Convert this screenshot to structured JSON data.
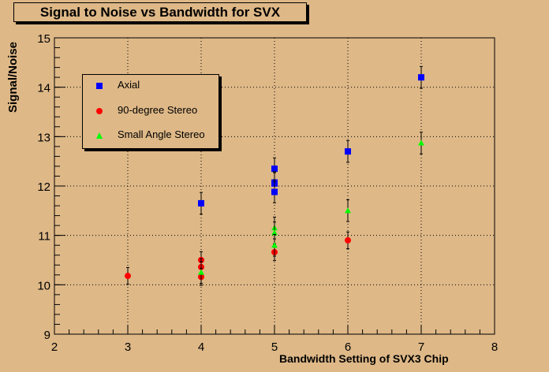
{
  "chart_data": {
    "type": "scatter",
    "title": "Signal to Noise vs Bandwidth for SVX",
    "xlabel": "Bandwidth Setting of SVX3 Chip",
    "ylabel": "Signal/Noise",
    "xlim": [
      2,
      8
    ],
    "ylim": [
      9,
      15
    ],
    "xticks": [
      "2",
      "3",
      "4",
      "5",
      "6",
      "7",
      "8"
    ],
    "yticks": [
      "9",
      "10",
      "11",
      "12",
      "13",
      "14",
      "15"
    ],
    "grid": true,
    "legend_position": "upper-left",
    "series": [
      {
        "name": "Axial",
        "marker": "square",
        "color": "#0000ff",
        "points": [
          {
            "x": 4,
            "y": 11.65,
            "err": 0.22
          },
          {
            "x": 5,
            "y": 12.35,
            "err": 0.22
          },
          {
            "x": 5,
            "y": 12.07,
            "err": 0.22
          },
          {
            "x": 5,
            "y": 12.05,
            "err": 0.22
          },
          {
            "x": 5,
            "y": 11.88,
            "err": 0.22
          },
          {
            "x": 6,
            "y": 12.7,
            "err": 0.22
          },
          {
            "x": 7,
            "y": 14.2,
            "err": 0.22
          }
        ]
      },
      {
        "name": "90-degree Stereo",
        "marker": "circle",
        "color": "#ff0000",
        "points": [
          {
            "x": 3,
            "y": 10.18,
            "err": 0.17
          },
          {
            "x": 4,
            "y": 10.5,
            "err": 0.17
          },
          {
            "x": 4,
            "y": 10.36,
            "err": 0.17
          },
          {
            "x": 4,
            "y": 10.16,
            "err": 0.17
          },
          {
            "x": 5,
            "y": 10.66,
            "err": 0.17
          },
          {
            "x": 6,
            "y": 10.9,
            "err": 0.17
          }
        ]
      },
      {
        "name": "Small Angle Stereo",
        "marker": "triangle",
        "color": "#00ff00",
        "points": [
          {
            "x": 4,
            "y": 10.25,
            "err": 0.22
          },
          {
            "x": 5,
            "y": 11.15,
            "err": 0.22
          },
          {
            "x": 5,
            "y": 11.05,
            "err": 0.22
          },
          {
            "x": 5,
            "y": 10.8,
            "err": 0.22
          },
          {
            "x": 6,
            "y": 11.5,
            "err": 0.22
          },
          {
            "x": 7,
            "y": 12.87,
            "err": 0.22
          }
        ]
      }
    ]
  }
}
